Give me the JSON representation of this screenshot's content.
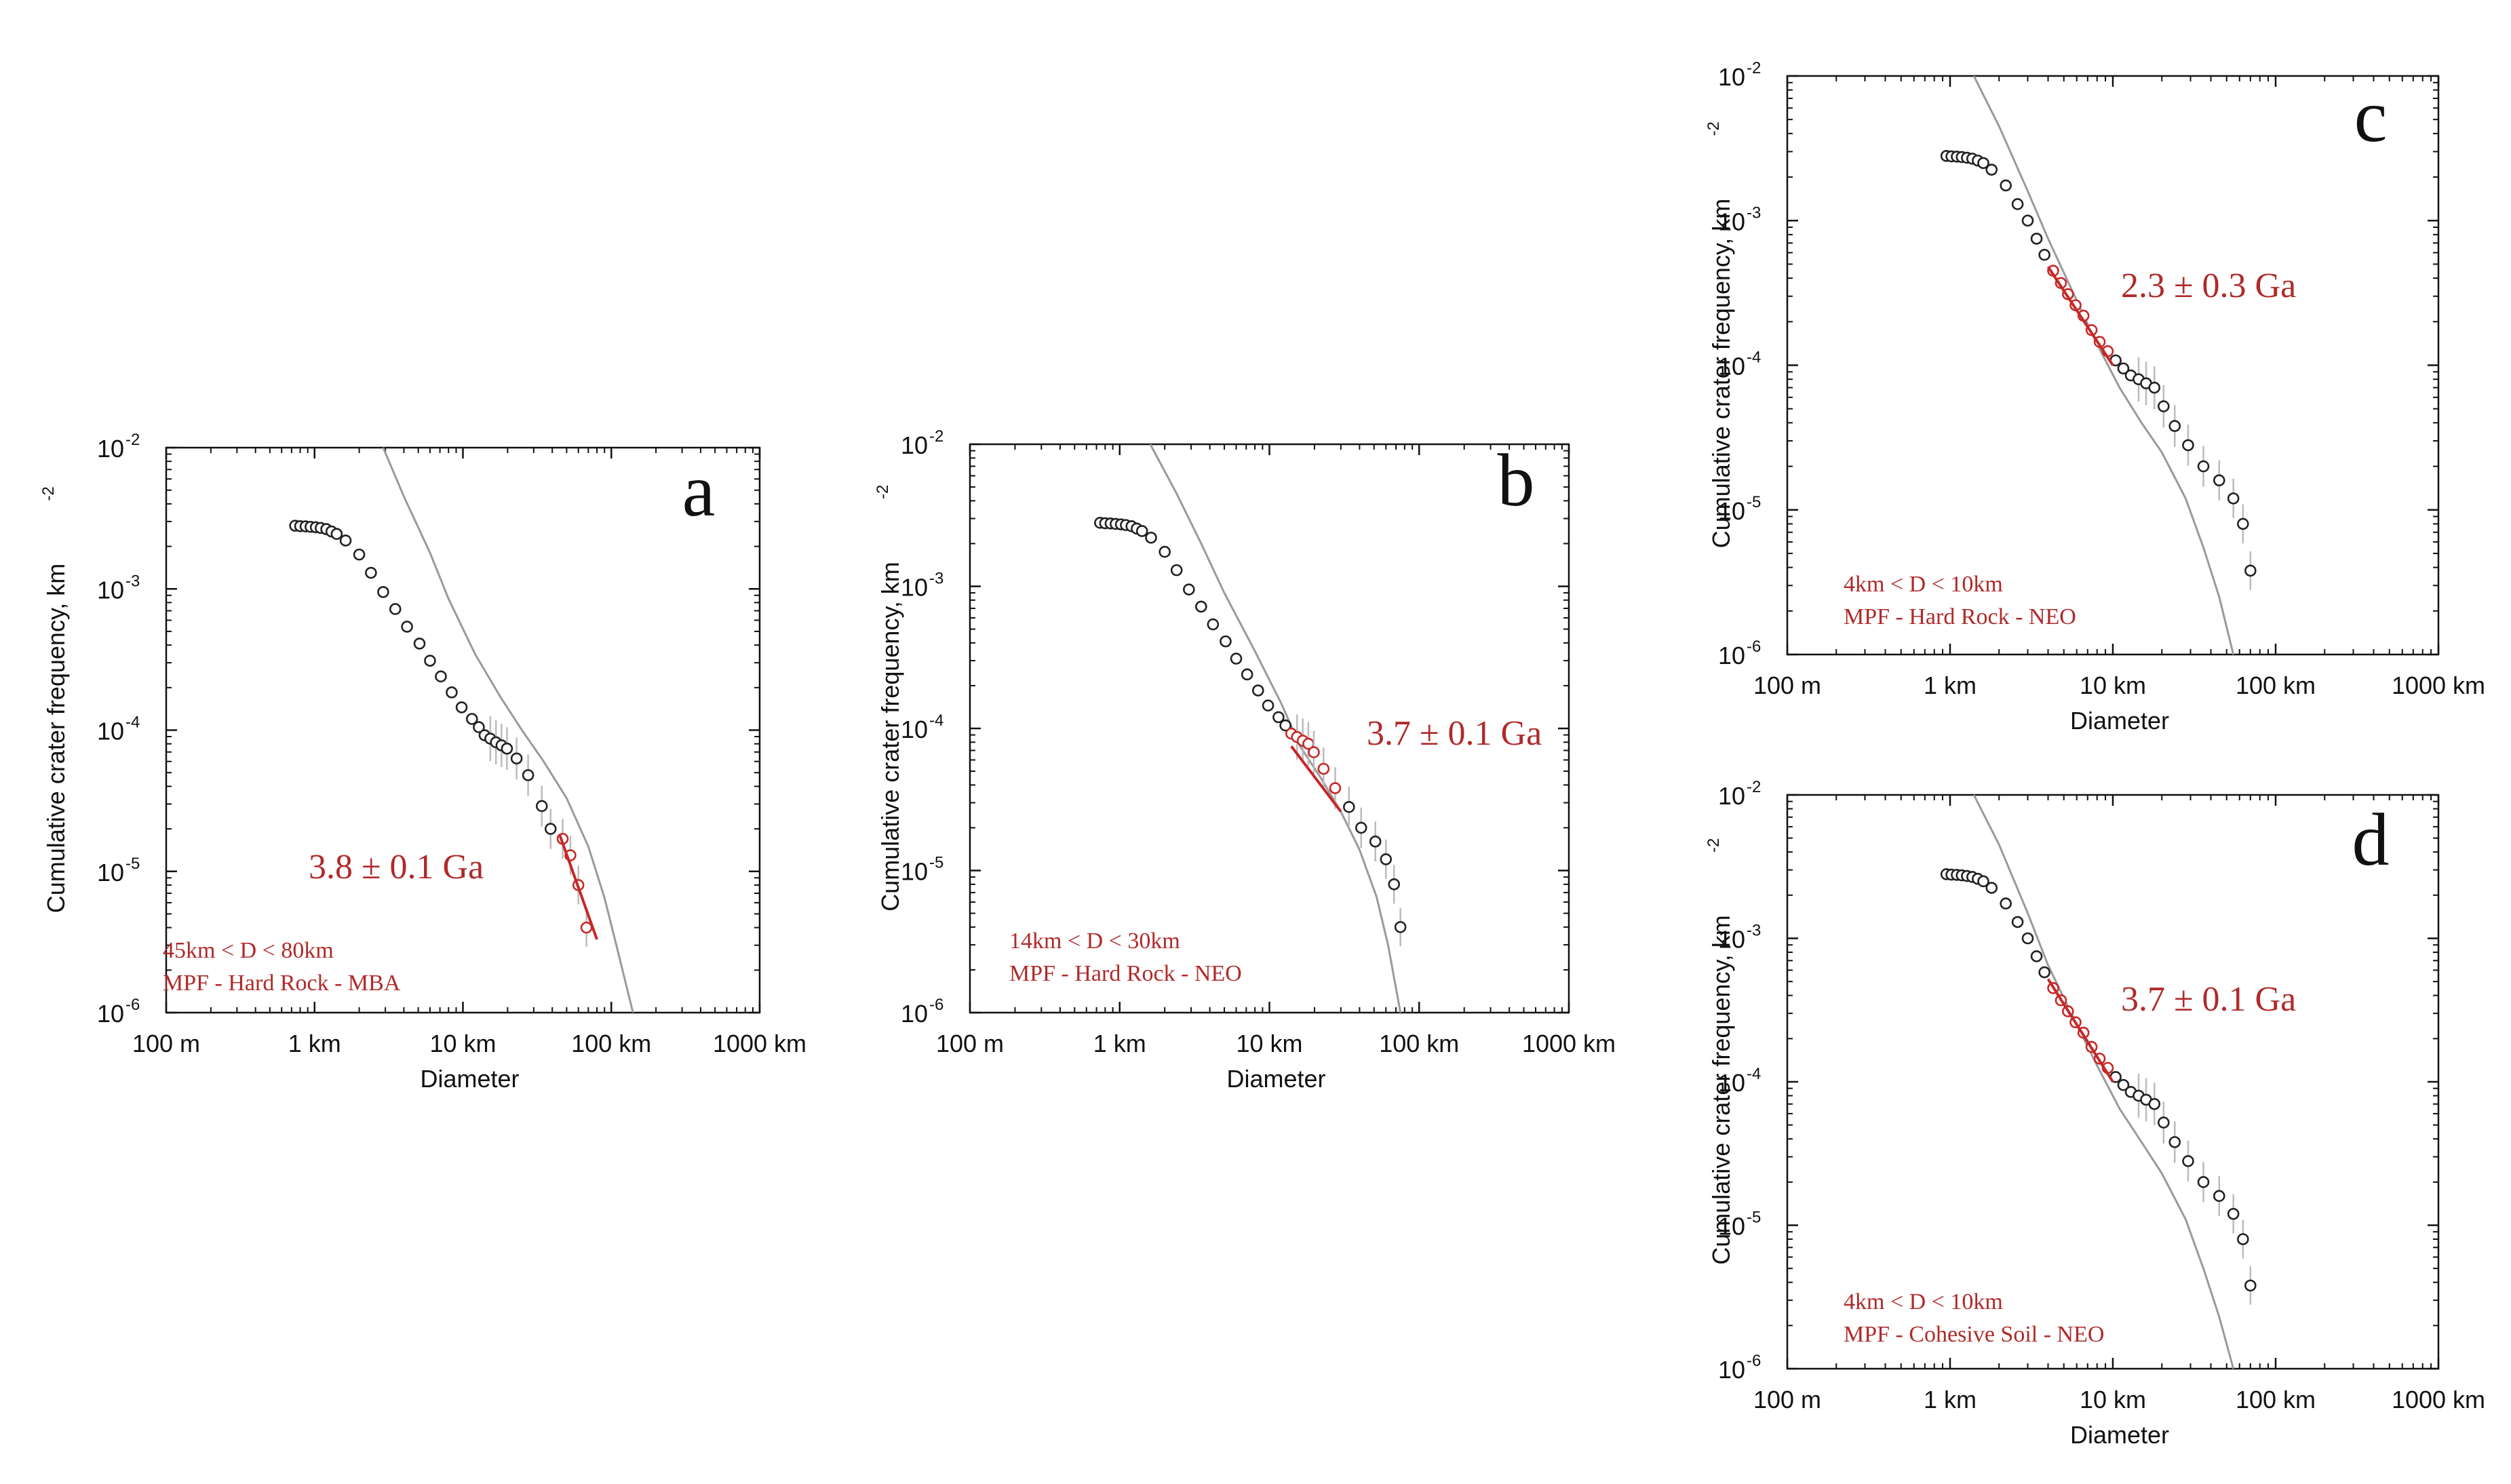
{
  "colors": {
    "fit": "#c62828",
    "annotation": "#b02a2a",
    "production": "#9a9a9a",
    "axes": "#111111",
    "errorbar": "#bbbbbb"
  },
  "chart_data": [
    {
      "type": "scatter",
      "panel": "a",
      "xlabel": "Diameter",
      "ylabel": "Cumulative crater frequency, km",
      "ylabel_superscript": "-2",
      "xlim_km": [
        0.1,
        1000
      ],
      "ylim": [
        1e-06,
        0.01
      ],
      "x_tick_labels": [
        "100 m",
        "1 km",
        "10 km",
        "100 km",
        "1000 km"
      ],
      "y_tick_bases": [
        "10",
        "10",
        "10",
        "10",
        "10"
      ],
      "y_tick_exponents": [
        "-2",
        "-3",
        "-4",
        "-5",
        "-6"
      ],
      "age_label": "3.8 ± 0.1 Ga",
      "annotations": [
        "45km < D < 80km",
        "MPF - Hard Rock - MBA"
      ],
      "fit_range_km": [
        45,
        80
      ],
      "points": [
        [
          0.74,
          0.0028
        ],
        [
          0.8,
          0.00278
        ],
        [
          0.87,
          0.00277
        ],
        [
          0.94,
          0.00275
        ],
        [
          1.02,
          0.00273
        ],
        [
          1.1,
          0.0027
        ],
        [
          1.2,
          0.00265
        ],
        [
          1.3,
          0.00255
        ],
        [
          1.41,
          0.00245
        ],
        [
          1.62,
          0.0022
        ],
        [
          2.0,
          0.00175
        ],
        [
          2.4,
          0.0013
        ],
        [
          2.9,
          0.00095
        ],
        [
          3.5,
          0.00072
        ],
        [
          4.2,
          0.00054
        ],
        [
          5.1,
          0.00041
        ],
        [
          6.0,
          0.00031
        ],
        [
          7.1,
          0.00024
        ],
        [
          8.4,
          0.000185
        ],
        [
          9.8,
          0.000145
        ],
        [
          11.5,
          0.00012
        ],
        [
          12.8,
          0.000105
        ],
        [
          14.0,
          9.2e-05
        ],
        [
          15.3,
          8.7e-05
        ],
        [
          16.7,
          8.2e-05
        ],
        [
          18.2,
          7.8e-05
        ],
        [
          19.8,
          7.4e-05
        ],
        [
          23.0,
          6.3e-05
        ],
        [
          27.5,
          4.8e-05
        ],
        [
          34.0,
          2.9e-05
        ],
        [
          39.0,
          2e-05
        ],
        [
          47.0,
          1.7e-05
        ],
        [
          53.0,
          1.3e-05
        ],
        [
          60.0,
          8e-06
        ],
        [
          68.0,
          4e-06
        ]
      ],
      "production_curve": [
        [
          2.9,
          0.01
        ],
        [
          4,
          0.0045
        ],
        [
          6,
          0.0018
        ],
        [
          8,
          0.00085
        ],
        [
          12,
          0.00035
        ],
        [
          18,
          0.00017
        ],
        [
          25,
          0.0001
        ],
        [
          35,
          6e-05
        ],
        [
          50,
          3.3e-05
        ],
        [
          70,
          1.5e-05
        ],
        [
          90,
          6.5e-06
        ],
        [
          110,
          2.8e-06
        ],
        [
          140,
          1e-06
        ]
      ],
      "fit_line": [
        [
          45,
          1.8e-05
        ],
        [
          80,
          3.3e-06
        ]
      ]
    },
    {
      "type": "scatter",
      "panel": "b",
      "xlabel": "Diameter",
      "ylabel": "Cumulative crater frequency, km",
      "ylabel_superscript": "-2",
      "xlim_km": [
        0.1,
        1000
      ],
      "ylim": [
        1e-06,
        0.01
      ],
      "x_tick_labels": [
        "100 m",
        "1 km",
        "10 km",
        "100 km",
        "1000 km"
      ],
      "y_tick_bases": [
        "10",
        "10",
        "10",
        "10",
        "10"
      ],
      "y_tick_exponents": [
        "-2",
        "-3",
        "-4",
        "-5",
        "-6"
      ],
      "age_label": "3.7 ± 0.1 Ga",
      "annotations": [
        "14km < D < 30km",
        "MPF - Hard Rock -  NEO"
      ],
      "fit_range_km": [
        14,
        30
      ],
      "points": [
        [
          0.74,
          0.0028
        ],
        [
          0.8,
          0.00278
        ],
        [
          0.87,
          0.00277
        ],
        [
          0.94,
          0.00275
        ],
        [
          1.02,
          0.00273
        ],
        [
          1.1,
          0.0027
        ],
        [
          1.2,
          0.00265
        ],
        [
          1.3,
          0.00255
        ],
        [
          1.41,
          0.00245
        ],
        [
          1.62,
          0.0022
        ],
        [
          2.0,
          0.00175
        ],
        [
          2.4,
          0.0013
        ],
        [
          2.9,
          0.00095
        ],
        [
          3.5,
          0.00072
        ],
        [
          4.2,
          0.00054
        ],
        [
          5.1,
          0.00041
        ],
        [
          6.0,
          0.00031
        ],
        [
          7.1,
          0.00024
        ],
        [
          8.4,
          0.000185
        ],
        [
          9.8,
          0.000145
        ],
        [
          11.5,
          0.00012
        ],
        [
          12.8,
          0.000105
        ],
        [
          14.0,
          9.2e-05
        ],
        [
          15.3,
          8.7e-05
        ],
        [
          16.7,
          8.2e-05
        ],
        [
          18.2,
          7.8e-05
        ],
        [
          19.8,
          6.8e-05
        ],
        [
          23.0,
          5.2e-05
        ],
        [
          27.5,
          3.8e-05
        ],
        [
          34.0,
          2.8e-05
        ],
        [
          41.0,
          2e-05
        ],
        [
          51.0,
          1.6e-05
        ],
        [
          60.0,
          1.2e-05
        ],
        [
          68.0,
          8e-06
        ],
        [
          75.0,
          4e-06
        ]
      ],
      "production_curve": [
        [
          1.6,
          0.01
        ],
        [
          2.4,
          0.0045
        ],
        [
          3.5,
          0.002
        ],
        [
          5,
          0.0009
        ],
        [
          8,
          0.00035
        ],
        [
          12,
          0.00015
        ],
        [
          16,
          7.5e-05
        ],
        [
          22,
          4.5e-05
        ],
        [
          30,
          2.6e-05
        ],
        [
          40,
          1.4e-05
        ],
        [
          52,
          6.5e-06
        ],
        [
          62,
          3e-06
        ],
        [
          75,
          1e-06
        ]
      ],
      "fit_line": [
        [
          14,
          7.5e-05
        ],
        [
          30,
          2.6e-05
        ]
      ]
    },
    {
      "type": "scatter",
      "panel": "c",
      "xlabel": "Diameter",
      "ylabel": "Cumulative crater frequency, km",
      "ylabel_superscript": "-2",
      "xlim_km": [
        0.1,
        1000
      ],
      "ylim": [
        1e-06,
        0.01
      ],
      "x_tick_labels": [
        "100 m",
        "1 km",
        "10 km",
        "100 km",
        "1000 km"
      ],
      "y_tick_bases": [
        "10",
        "10",
        "10",
        "10",
        "10"
      ],
      "y_tick_exponents": [
        "-2",
        "-3",
        "-4",
        "-5",
        "-6"
      ],
      "age_label": "2.3 ± 0.3 Ga",
      "annotations": [
        "4km < D < 10km",
        "MPF - Hard Rock - NEO"
      ],
      "fit_range_km": [
        4,
        10
      ],
      "points": [
        [
          0.95,
          0.0028
        ],
        [
          1.02,
          0.00278
        ],
        [
          1.1,
          0.00277
        ],
        [
          1.18,
          0.00275
        ],
        [
          1.27,
          0.00272
        ],
        [
          1.37,
          0.00268
        ],
        [
          1.48,
          0.0026
        ],
        [
          1.6,
          0.0025
        ],
        [
          1.8,
          0.00225
        ],
        [
          2.2,
          0.00175
        ],
        [
          2.6,
          0.0013
        ],
        [
          3.0,
          0.001
        ],
        [
          3.4,
          0.00075
        ],
        [
          3.8,
          0.00058
        ],
        [
          4.3,
          0.00045
        ],
        [
          4.8,
          0.00037
        ],
        [
          5.3,
          0.00031
        ],
        [
          5.9,
          0.00026
        ],
        [
          6.6,
          0.00022
        ],
        [
          7.4,
          0.000175
        ],
        [
          8.3,
          0.000145
        ],
        [
          9.3,
          0.000125
        ],
        [
          10.4,
          0.000108
        ],
        [
          11.6,
          9.5e-05
        ],
        [
          12.9,
          8.5e-05
        ],
        [
          14.4,
          8e-05
        ],
        [
          16.0,
          7.5e-05
        ],
        [
          18.0,
          7e-05
        ],
        [
          20.5,
          5.2e-05
        ],
        [
          24.0,
          3.8e-05
        ],
        [
          29.0,
          2.8e-05
        ],
        [
          36.0,
          2e-05
        ],
        [
          45.0,
          1.6e-05
        ],
        [
          55.0,
          1.2e-05
        ],
        [
          63.0,
          8e-06
        ],
        [
          70.0,
          3.8e-06
        ]
      ],
      "production_curve": [
        [
          1.4,
          0.01
        ],
        [
          2,
          0.0045
        ],
        [
          3,
          0.0016
        ],
        [
          4,
          0.00075
        ],
        [
          6,
          0.00028
        ],
        [
          8,
          0.00014
        ],
        [
          11,
          7e-05
        ],
        [
          15,
          4e-05
        ],
        [
          20,
          2.5e-05
        ],
        [
          28,
          1.2e-05
        ],
        [
          36,
          5.5e-06
        ],
        [
          45,
          2.5e-06
        ],
        [
          55,
          1e-06
        ]
      ],
      "fit_line": [
        [
          4,
          0.00048
        ],
        [
          10,
          0.0001
        ]
      ]
    },
    {
      "type": "scatter",
      "panel": "d",
      "xlabel": "Diameter",
      "ylabel": "Cumulative crater frequency, km",
      "ylabel_superscript": "-2",
      "xlim_km": [
        0.1,
        1000
      ],
      "ylim": [
        1e-06,
        0.01
      ],
      "x_tick_labels": [
        "100 m",
        "1 km",
        "10 km",
        "100 km",
        "1000 km"
      ],
      "y_tick_bases": [
        "10",
        "10",
        "10",
        "10",
        "10"
      ],
      "y_tick_exponents": [
        "-2",
        "-3",
        "-4",
        "-5",
        "-6"
      ],
      "age_label": "3.7 ± 0.1 Ga",
      "annotations": [
        "4km < D < 10km",
        "MPF - Cohesive Soil - NEO"
      ],
      "fit_range_km": [
        4,
        10
      ],
      "points": [
        [
          0.95,
          0.0028
        ],
        [
          1.02,
          0.00278
        ],
        [
          1.1,
          0.00277
        ],
        [
          1.18,
          0.00275
        ],
        [
          1.27,
          0.00272
        ],
        [
          1.37,
          0.00268
        ],
        [
          1.48,
          0.0026
        ],
        [
          1.6,
          0.0025
        ],
        [
          1.8,
          0.00225
        ],
        [
          2.2,
          0.00175
        ],
        [
          2.6,
          0.0013
        ],
        [
          3.0,
          0.001
        ],
        [
          3.4,
          0.00075
        ],
        [
          3.8,
          0.00058
        ],
        [
          4.3,
          0.00045
        ],
        [
          4.8,
          0.00037
        ],
        [
          5.3,
          0.00031
        ],
        [
          5.9,
          0.00026
        ],
        [
          6.6,
          0.00022
        ],
        [
          7.4,
          0.000175
        ],
        [
          8.3,
          0.000145
        ],
        [
          9.3,
          0.000125
        ],
        [
          10.4,
          0.000108
        ],
        [
          11.6,
          9.5e-05
        ],
        [
          12.9,
          8.5e-05
        ],
        [
          14.4,
          8e-05
        ],
        [
          16.0,
          7.5e-05
        ],
        [
          18.0,
          7e-05
        ],
        [
          20.5,
          5.2e-05
        ],
        [
          24.0,
          3.8e-05
        ],
        [
          29.0,
          2.8e-05
        ],
        [
          36.0,
          2e-05
        ],
        [
          45.0,
          1.6e-05
        ],
        [
          55.0,
          1.2e-05
        ],
        [
          63.0,
          8e-06
        ],
        [
          70.0,
          3.8e-06
        ]
      ],
      "production_curve": [
        [
          1.4,
          0.01
        ],
        [
          2,
          0.0045
        ],
        [
          3,
          0.0015
        ],
        [
          4,
          0.00065
        ],
        [
          6,
          0.00025
        ],
        [
          8,
          0.00013
        ],
        [
          11,
          6.5e-05
        ],
        [
          15,
          3.8e-05
        ],
        [
          20,
          2.3e-05
        ],
        [
          28,
          1.1e-05
        ],
        [
          36,
          5e-06
        ],
        [
          45,
          2.3e-06
        ],
        [
          55,
          1e-06
        ]
      ],
      "fit_line": [
        [
          4,
          0.00052
        ],
        [
          10,
          0.0001
        ]
      ]
    }
  ]
}
